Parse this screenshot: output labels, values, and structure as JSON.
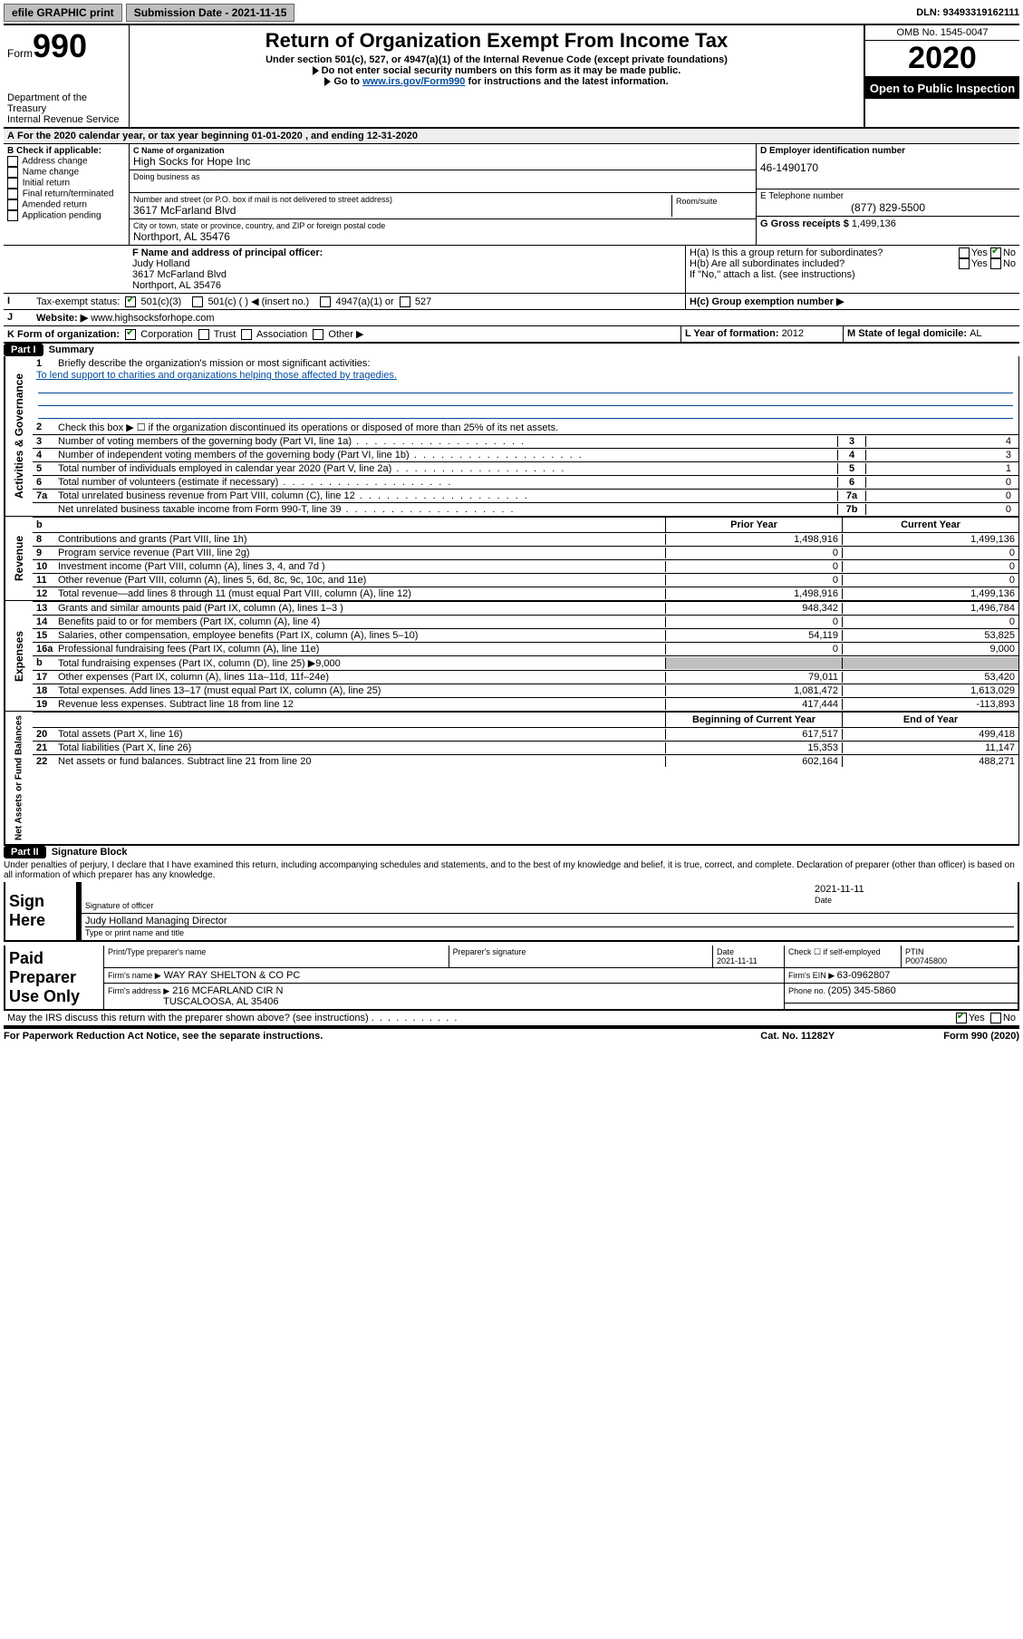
{
  "topbar": {
    "efile": "efile GRAPHIC print",
    "sub_label": "Submission Date - 2021-11-15",
    "dln": "DLN: 93493319162111"
  },
  "header": {
    "form_prefix": "Form",
    "form_num": "990",
    "dept": "Department of the Treasury",
    "irs": "Internal Revenue Service",
    "title": "Return of Organization Exempt From Income Tax",
    "sub1": "Under section 501(c), 527, or 4947(a)(1) of the Internal Revenue Code (except private foundations)",
    "sub2": "Do not enter social security numbers on this form as it may be made public.",
    "sub3_pre": "Go to ",
    "sub3_link": "www.irs.gov/Form990",
    "sub3_post": " for instructions and the latest information.",
    "omb": "OMB No. 1545-0047",
    "year": "2020",
    "inspect": "Open to Public Inspection"
  },
  "lineA": "For the 2020 calendar year, or tax year beginning 01-01-2020   , and ending 12-31-2020",
  "B": {
    "title": "B Check if applicable:",
    "items": [
      "Address change",
      "Name change",
      "Initial return",
      "Final return/terminated",
      "Amended return",
      "Application pending"
    ]
  },
  "C": {
    "name_lbl": "C Name of organization",
    "name": "High Socks for Hope Inc",
    "dba_lbl": "Doing business as",
    "street_lbl": "Number and street (or P.O. box if mail is not delivered to street address)",
    "street": "3617 McFarland Blvd",
    "room_lbl": "Room/suite",
    "city_lbl": "City or town, state or province, country, and ZIP or foreign postal code",
    "city": "Northport, AL  35476"
  },
  "D": {
    "ein_lbl": "D Employer identification number",
    "ein": "46-1490170",
    "tel_lbl": "E Telephone number",
    "tel": "(877) 829-5500",
    "gross_lbl": "G Gross receipts $ ",
    "gross": "1,499,136"
  },
  "FH": {
    "f_lbl": "F  Name and address of principal officer:",
    "f_name": "Judy Holland",
    "f_addr1": "3617 McFarland Blvd",
    "f_addr2": "Northport, AL  35476",
    "ha_lbl": "H(a)  Is this a group return for subordinates?",
    "hb_lbl": "H(b)  Are all subordinates included?",
    "h_note": "If \"No,\" attach a list. (see instructions)",
    "yes": "Yes",
    "no": "No"
  },
  "I": {
    "lbl": "Tax-exempt status:",
    "opt1": "501(c)(3)",
    "opt2": "501(c) (  ) ◀ (insert no.)",
    "opt3": "4947(a)(1) or",
    "opt4": "527",
    "hc_lbl": "H(c)  Group exemption number ▶"
  },
  "J": {
    "lbl": "Website: ▶",
    "val": "www.highsocksforhope.com"
  },
  "K": {
    "lbl": "K Form of organization:",
    "corp": "Corporation",
    "trust": "Trust",
    "assoc": "Association",
    "other": "Other ▶",
    "L_lbl": "L Year of formation: ",
    "L_val": "2012",
    "M_lbl": "M State of legal domicile: ",
    "M_val": "AL"
  },
  "partI": {
    "pill": "Part I",
    "title": "Summary",
    "gov_label": "Activities & Governance",
    "rev_label": "Revenue",
    "exp_label": "Expenses",
    "net_label": "Net Assets or Fund Balances",
    "l1": "Briefly describe the organization's mission or most significant activities:",
    "mission": "To lend support to charities and organizations helping those affected by tragedies.",
    "l2": "Check this box ▶ ☐  if the organization discontinued its operations or disposed of more than 25% of its net assets.",
    "lines_gov": [
      {
        "n": "3",
        "d": "Number of voting members of the governing body (Part VI, line 1a)",
        "nb": "3",
        "v": "4"
      },
      {
        "n": "4",
        "d": "Number of independent voting members of the governing body (Part VI, line 1b)",
        "nb": "4",
        "v": "3"
      },
      {
        "n": "5",
        "d": "Total number of individuals employed in calendar year 2020 (Part V, line 2a)",
        "nb": "5",
        "v": "1"
      },
      {
        "n": "6",
        "d": "Total number of volunteers (estimate if necessary)",
        "nb": "6",
        "v": "0"
      },
      {
        "n": "7a",
        "d": "Total unrelated business revenue from Part VIII, column (C), line 12",
        "nb": "7a",
        "v": "0"
      },
      {
        "n": "",
        "d": "Net unrelated business taxable income from Form 990-T, line 39",
        "nb": "7b",
        "v": "0"
      }
    ],
    "prior": "Prior Year",
    "current": "Current Year",
    "lines_rev": [
      {
        "n": "8",
        "d": "Contributions and grants (Part VIII, line 1h)",
        "c1": "1,498,916",
        "c2": "1,499,136"
      },
      {
        "n": "9",
        "d": "Program service revenue (Part VIII, line 2g)",
        "c1": "0",
        "c2": "0"
      },
      {
        "n": "10",
        "d": "Investment income (Part VIII, column (A), lines 3, 4, and 7d )",
        "c1": "0",
        "c2": "0"
      },
      {
        "n": "11",
        "d": "Other revenue (Part VIII, column (A), lines 5, 6d, 8c, 9c, 10c, and 11e)",
        "c1": "0",
        "c2": "0"
      },
      {
        "n": "12",
        "d": "Total revenue—add lines 8 through 11 (must equal Part VIII, column (A), line 12)",
        "c1": "1,498,916",
        "c2": "1,499,136"
      }
    ],
    "lines_exp": [
      {
        "n": "13",
        "d": "Grants and similar amounts paid (Part IX, column (A), lines 1–3 )",
        "c1": "948,342",
        "c2": "1,496,784"
      },
      {
        "n": "14",
        "d": "Benefits paid to or for members (Part IX, column (A), line 4)",
        "c1": "0",
        "c2": "0"
      },
      {
        "n": "15",
        "d": "Salaries, other compensation, employee benefits (Part IX, column (A), lines 5–10)",
        "c1": "54,119",
        "c2": "53,825"
      },
      {
        "n": "16a",
        "d": "Professional fundraising fees (Part IX, column (A), line 11e)",
        "c1": "0",
        "c2": "9,000"
      },
      {
        "n": "b",
        "d": "Total fundraising expenses (Part IX, column (D), line 25) ▶9,000",
        "c1": "",
        "c2": ""
      },
      {
        "n": "17",
        "d": "Other expenses (Part IX, column (A), lines 11a–11d, 11f–24e)",
        "c1": "79,011",
        "c2": "53,420"
      },
      {
        "n": "18",
        "d": "Total expenses. Add lines 13–17 (must equal Part IX, column (A), line 25)",
        "c1": "1,081,472",
        "c2": "1,613,029"
      },
      {
        "n": "19",
        "d": "Revenue less expenses. Subtract line 18 from line 12",
        "c1": "417,444",
        "c2": "-113,893"
      }
    ],
    "begin": "Beginning of Current Year",
    "end": "End of Year",
    "lines_net": [
      {
        "n": "20",
        "d": "Total assets (Part X, line 16)",
        "c1": "617,517",
        "c2": "499,418"
      },
      {
        "n": "21",
        "d": "Total liabilities (Part X, line 26)",
        "c1": "15,353",
        "c2": "11,147"
      },
      {
        "n": "22",
        "d": "Net assets or fund balances. Subtract line 21 from line 20",
        "c1": "602,164",
        "c2": "488,271"
      }
    ]
  },
  "partII": {
    "pill": "Part II",
    "title": "Signature Block",
    "decl": "Under penalties of perjury, I declare that I have examined this return, including accompanying schedules and statements, and to the best of my knowledge and belief, it is true, correct, and complete. Declaration of preparer (other than officer) is based on all information of which preparer has any knowledge.",
    "sign_here": "Sign Here",
    "sig_officer": "Signature of officer",
    "sig_date": "2021-11-11",
    "date_lbl": "Date",
    "officer_name": "Judy Holland  Managing Director",
    "officer_type": "Type or print name and title",
    "paid": "Paid Preparer Use Only",
    "print_name_lbl": "Print/Type preparer's name",
    "prep_sig_lbl": "Preparer's signature",
    "date2": "2021-11-11",
    "self_lbl": "Check ☐ if self-employed",
    "ptin_lbl": "PTIN",
    "ptin": "P00745800",
    "firm_name_lbl": "Firm's name    ▶",
    "firm_name": "WAY RAY SHELTON & CO PC",
    "firm_ein_lbl": "Firm's EIN ▶ ",
    "firm_ein": "63-0962807",
    "firm_addr_lbl": "Firm's address ▶",
    "firm_addr1": "216 MCFARLAND CIR N",
    "firm_addr2": "TUSCALOOSA, AL  35406",
    "phone_lbl": "Phone no. ",
    "phone": "(205) 345-5860",
    "discuss": "May the IRS discuss this return with the preparer shown above? (see instructions)"
  },
  "footer": {
    "left": "For Paperwork Reduction Act Notice, see the separate instructions.",
    "mid": "Cat. No. 11282Y",
    "right": "Form 990 (2020)"
  }
}
